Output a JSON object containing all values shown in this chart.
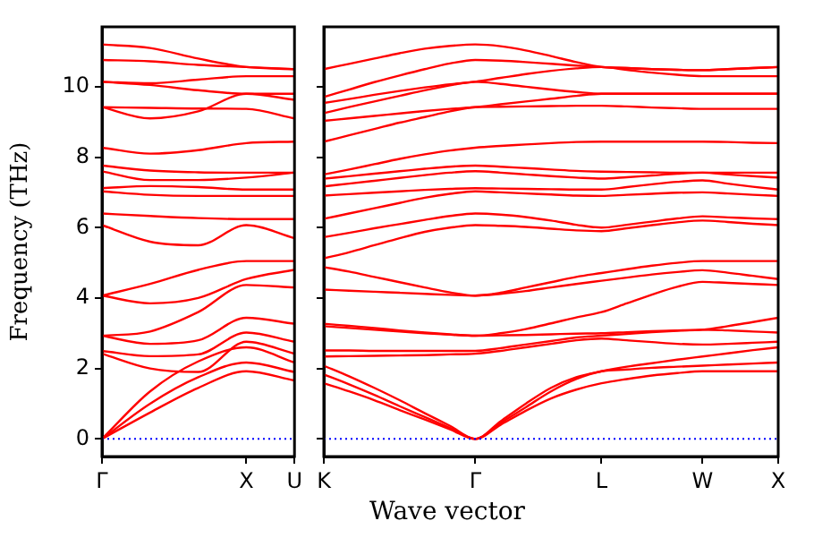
{
  "chart_data": [
    {
      "type": "line",
      "ylabel": "Frequency (THz)",
      "categories": [
        "Γ",
        null,
        null,
        "X",
        "U"
      ],
      "ylim": [
        -0.5,
        11.7
      ],
      "yticks": [
        0,
        2,
        4,
        6,
        8,
        10
      ],
      "grid": false,
      "legend": false,
      "marker": "none",
      "line_style": "solid",
      "ref_lines": [
        {
          "axis": "y",
          "value": 0,
          "color": "#0000ff",
          "line_style": "dotted"
        }
      ],
      "series": [
        {
          "color": "#ff0000",
          "values": [
            0,
            0.75,
            1.45,
            1.92,
            1.66
          ]
        },
        {
          "color": "#ff0000",
          "values": [
            0,
            1.0,
            1.75,
            2.17,
            1.9
          ]
        },
        {
          "color": "#ff0000",
          "values": [
            0,
            1.35,
            2.2,
            2.6,
            2.17
          ]
        },
        {
          "color": "#ff0000",
          "values": [
            2.42,
            2.0,
            1.9,
            2.76,
            2.42
          ]
        },
        {
          "color": "#ff0000",
          "values": [
            2.5,
            2.35,
            2.4,
            3.02,
            2.76
          ]
        },
        {
          "color": "#ff0000",
          "values": [
            2.93,
            2.7,
            2.8,
            3.44,
            3.27
          ]
        },
        {
          "color": "#ff0000",
          "values": [
            2.93,
            3.05,
            3.6,
            4.37,
            4.3
          ]
        },
        {
          "color": "#ff0000",
          "values": [
            4.07,
            3.85,
            4.0,
            4.54,
            4.8
          ]
        },
        {
          "color": "#ff0000",
          "values": [
            4.07,
            4.4,
            4.8,
            5.05,
            5.05
          ]
        },
        {
          "color": "#ff0000",
          "values": [
            6.07,
            5.6,
            5.5,
            6.07,
            5.7
          ]
        },
        {
          "color": "#ff0000",
          "values": [
            6.4,
            6.33,
            6.27,
            6.24,
            6.24
          ]
        },
        {
          "color": "#ff0000",
          "values": [
            7.03,
            6.93,
            6.9,
            6.9,
            6.9
          ]
        },
        {
          "color": "#ff0000",
          "values": [
            7.12,
            7.18,
            7.15,
            7.08,
            7.08
          ]
        },
        {
          "color": "#ff0000",
          "values": [
            7.6,
            7.35,
            7.35,
            7.42,
            7.56
          ]
        },
        {
          "color": "#ff0000",
          "values": [
            7.76,
            7.62,
            7.57,
            7.56,
            7.56
          ]
        },
        {
          "color": "#ff0000",
          "values": [
            8.27,
            8.1,
            8.2,
            8.4,
            8.44
          ]
        },
        {
          "color": "#ff0000",
          "values": [
            9.42,
            9.4,
            9.38,
            9.37,
            9.1
          ]
        },
        {
          "color": "#ff0000",
          "values": [
            9.42,
            9.1,
            9.3,
            9.8,
            9.63
          ]
        },
        {
          "color": "#ff0000",
          "values": [
            10.14,
            10.05,
            9.9,
            9.8,
            9.8
          ]
        },
        {
          "color": "#ff0000",
          "values": [
            10.14,
            10.1,
            10.2,
            10.3,
            10.3
          ]
        },
        {
          "color": "#ff0000",
          "values": [
            10.76,
            10.72,
            10.62,
            10.56,
            10.5
          ]
        },
        {
          "color": "#ff0000",
          "values": [
            11.2,
            11.1,
            10.8,
            10.56,
            10.5
          ]
        }
      ]
    },
    {
      "type": "line",
      "xlabel": "Wave vector",
      "categories": [
        "K",
        null,
        null,
        null,
        null,
        null,
        "Γ",
        null,
        null,
        null,
        null,
        "L",
        null,
        null,
        null,
        "W",
        null,
        null,
        "X"
      ],
      "ylim": [
        -0.5,
        11.7
      ],
      "yticks": [
        0,
        2,
        4,
        6,
        8,
        10
      ],
      "tick_labels": "x",
      "grid": false,
      "legend": false,
      "marker": "none",
      "line_style": "solid",
      "ref_lines": [
        {
          "axis": "y",
          "value": 0,
          "color": "#0000ff",
          "line_style": "dotted"
        }
      ],
      "series": [
        {
          "color": "#ff0000",
          "values": [
            1.58,
            1.35,
            1.1,
            0.82,
            0.55,
            0.27,
            0,
            0.4,
            0.8,
            1.15,
            1.4,
            1.58,
            1.7,
            1.8,
            1.87,
            1.92,
            1.92,
            1.92,
            1.92
          ]
        },
        {
          "color": "#ff0000",
          "values": [
            1.83,
            1.55,
            1.25,
            0.93,
            0.62,
            0.31,
            0,
            0.45,
            0.9,
            1.35,
            1.7,
            1.92,
            1.97,
            2.02,
            2.05,
            2.08,
            2.11,
            2.14,
            2.17
          ]
        },
        {
          "color": "#ff0000",
          "values": [
            2.08,
            1.78,
            1.45,
            1.1,
            0.73,
            0.37,
            0,
            0.5,
            1.0,
            1.45,
            1.75,
            1.92,
            2.05,
            2.15,
            2.25,
            2.34,
            2.43,
            2.52,
            2.6
          ]
        },
        {
          "color": "#ff0000",
          "values": [
            2.34,
            2.35,
            2.36,
            2.37,
            2.38,
            2.4,
            2.42,
            2.5,
            2.6,
            2.7,
            2.8,
            2.85,
            2.8,
            2.75,
            2.7,
            2.68,
            2.7,
            2.73,
            2.76
          ]
        },
        {
          "color": "#ff0000",
          "values": [
            2.51,
            2.51,
            2.5,
            2.5,
            2.5,
            2.5,
            2.5,
            2.58,
            2.68,
            2.78,
            2.88,
            2.93,
            2.98,
            3.03,
            3.07,
            3.1,
            3.08,
            3.05,
            3.02
          ]
        },
        {
          "color": "#ff0000",
          "values": [
            3.2,
            3.15,
            3.1,
            3.05,
            3.0,
            2.96,
            2.93,
            2.94,
            2.95,
            2.97,
            2.99,
            3.0,
            3.03,
            3.06,
            3.08,
            3.1,
            3.2,
            3.32,
            3.44
          ]
        },
        {
          "color": "#ff0000",
          "values": [
            3.27,
            3.21,
            3.15,
            3.08,
            3.02,
            2.97,
            2.93,
            3.0,
            3.12,
            3.28,
            3.45,
            3.6,
            3.85,
            4.1,
            4.32,
            4.46,
            4.43,
            4.4,
            4.37
          ]
        },
        {
          "color": "#ff0000",
          "values": [
            4.24,
            4.21,
            4.18,
            4.15,
            4.12,
            4.09,
            4.07,
            4.12,
            4.2,
            4.3,
            4.4,
            4.49,
            4.58,
            4.67,
            4.74,
            4.79,
            4.72,
            4.63,
            4.54
          ]
        },
        {
          "color": "#ff0000",
          "values": [
            4.88,
            4.75,
            4.6,
            4.45,
            4.3,
            4.16,
            4.07,
            4.15,
            4.3,
            4.45,
            4.6,
            4.71,
            4.82,
            4.92,
            5.0,
            5.05,
            5.05,
            5.05,
            5.05
          ]
        },
        {
          "color": "#ff0000",
          "values": [
            5.13,
            5.3,
            5.5,
            5.7,
            5.88,
            6.0,
            6.07,
            6.05,
            6.02,
            5.97,
            5.92,
            5.9,
            5.98,
            6.07,
            6.15,
            6.2,
            6.16,
            6.11,
            6.07
          ]
        },
        {
          "color": "#ff0000",
          "values": [
            5.73,
            5.85,
            5.98,
            6.1,
            6.22,
            6.33,
            6.4,
            6.37,
            6.3,
            6.2,
            6.08,
            6.0,
            6.08,
            6.17,
            6.26,
            6.32,
            6.29,
            6.26,
            6.24
          ]
        },
        {
          "color": "#ff0000",
          "values": [
            6.25,
            6.4,
            6.55,
            6.7,
            6.85,
            6.96,
            7.03,
            7.0,
            6.97,
            6.94,
            6.91,
            6.9,
            6.93,
            6.96,
            6.99,
            7.0,
            6.97,
            6.93,
            6.9
          ]
        },
        {
          "color": "#ff0000",
          "values": [
            6.91,
            6.95,
            6.99,
            7.03,
            7.07,
            7.1,
            7.12,
            7.11,
            7.1,
            7.09,
            7.08,
            7.08,
            7.15,
            7.23,
            7.3,
            7.34,
            7.25,
            7.16,
            7.08
          ]
        },
        {
          "color": "#ff0000",
          "values": [
            7.17,
            7.25,
            7.33,
            7.41,
            7.49,
            7.56,
            7.6,
            7.56,
            7.51,
            7.46,
            7.42,
            7.39,
            7.43,
            7.48,
            7.53,
            7.56,
            7.51,
            7.46,
            7.42
          ]
        },
        {
          "color": "#ff0000",
          "values": [
            7.39,
            7.46,
            7.53,
            7.6,
            7.67,
            7.73,
            7.76,
            7.73,
            7.69,
            7.65,
            7.61,
            7.59,
            7.58,
            7.57,
            7.56,
            7.56,
            7.56,
            7.56,
            7.56
          ]
        },
        {
          "color": "#ff0000",
          "values": [
            7.51,
            7.65,
            7.8,
            7.95,
            8.08,
            8.19,
            8.27,
            8.32,
            8.36,
            8.4,
            8.43,
            8.44,
            8.44,
            8.44,
            8.44,
            8.44,
            8.43,
            8.41,
            8.4
          ]
        },
        {
          "color": "#ff0000",
          "values": [
            8.44,
            8.62,
            8.8,
            8.98,
            9.14,
            9.3,
            9.42,
            9.43,
            9.44,
            9.45,
            9.46,
            9.46,
            9.44,
            9.41,
            9.39,
            9.37,
            9.37,
            9.37,
            9.37
          ]
        },
        {
          "color": "#ff0000",
          "values": [
            9.03,
            9.1,
            9.17,
            9.24,
            9.31,
            9.37,
            9.42,
            9.5,
            9.58,
            9.66,
            9.74,
            9.8,
            9.8,
            9.8,
            9.8,
            9.8,
            9.8,
            9.8,
            9.8
          ]
        },
        {
          "color": "#ff0000",
          "values": [
            9.25,
            9.42,
            9.58,
            9.74,
            9.9,
            10.04,
            10.14,
            10.08,
            10.0,
            9.92,
            9.85,
            9.8,
            9.8,
            9.8,
            9.8,
            9.8,
            9.8,
            9.8,
            9.8
          ]
        },
        {
          "color": "#ff0000",
          "values": [
            9.54,
            9.65,
            9.77,
            9.88,
            9.98,
            10.07,
            10.14,
            10.25,
            10.36,
            10.45,
            10.52,
            10.56,
            10.48,
            10.4,
            10.34,
            10.3,
            10.3,
            10.3,
            10.3
          ]
        },
        {
          "color": "#ff0000",
          "values": [
            9.71,
            9.92,
            10.13,
            10.32,
            10.5,
            10.66,
            10.76,
            10.74,
            10.7,
            10.65,
            10.6,
            10.56,
            10.53,
            10.5,
            10.48,
            10.47,
            10.5,
            10.53,
            10.56
          ]
        },
        {
          "color": "#ff0000",
          "values": [
            10.5,
            10.65,
            10.8,
            10.95,
            11.08,
            11.16,
            11.2,
            11.15,
            11.03,
            10.87,
            10.7,
            10.56,
            10.53,
            10.5,
            10.48,
            10.47,
            10.5,
            10.53,
            10.56
          ]
        }
      ]
    }
  ]
}
